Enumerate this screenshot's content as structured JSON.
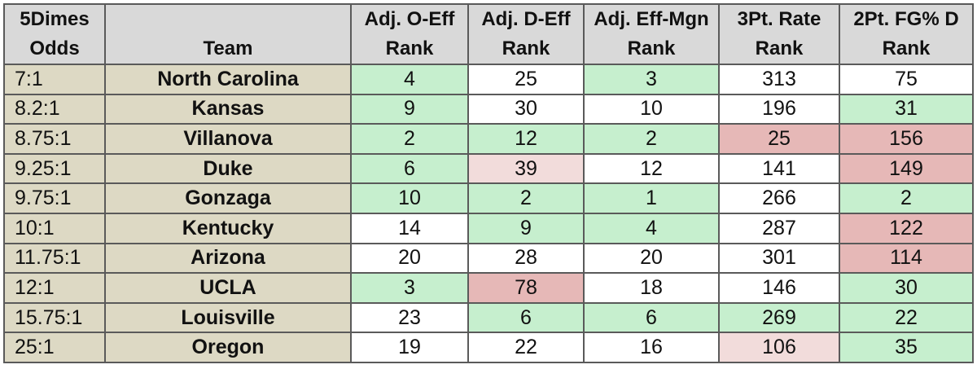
{
  "headers": {
    "odds": [
      "5Dimes",
      "Odds"
    ],
    "team": "Team",
    "adj_o": [
      "Adj. O-Eff",
      "Rank"
    ],
    "adj_d": [
      "Adj. D-Eff",
      "Rank"
    ],
    "adj_mgn": [
      "Adj. Eff-Mgn",
      "Rank"
    ],
    "three_pt": [
      "3Pt. Rate",
      "Rank"
    ],
    "two_pt_d": [
      "2Pt. FG% D",
      "Rank"
    ]
  },
  "colors": {
    "header_bg": "#d9d9d9",
    "team_bg": "#ddd9c4",
    "good": "#c6efce",
    "light_bad": "#f2dcdb",
    "bad": "#e6b8b7",
    "neutral": "#ffffff"
  },
  "rows": [
    {
      "odds": "7:1",
      "team": "North Carolina",
      "adj_o": "4",
      "adj_d": "25",
      "adj_mgn": "3",
      "three_pt": "313",
      "two_pt_d": "75"
    },
    {
      "odds": "8.2:1",
      "team": "Kansas",
      "adj_o": "9",
      "adj_d": "30",
      "adj_mgn": "10",
      "three_pt": "196",
      "two_pt_d": "31"
    },
    {
      "odds": "8.75:1",
      "team": "Villanova",
      "adj_o": "2",
      "adj_d": "12",
      "adj_mgn": "2",
      "three_pt": "25",
      "two_pt_d": "156"
    },
    {
      "odds": "9.25:1",
      "team": "Duke",
      "adj_o": "6",
      "adj_d": "39",
      "adj_mgn": "12",
      "three_pt": "141",
      "two_pt_d": "149"
    },
    {
      "odds": "9.75:1",
      "team": "Gonzaga",
      "adj_o": "10",
      "adj_d": "2",
      "adj_mgn": "1",
      "three_pt": "266",
      "two_pt_d": "2"
    },
    {
      "odds": "10:1",
      "team": "Kentucky",
      "adj_o": "14",
      "adj_d": "9",
      "adj_mgn": "4",
      "three_pt": "287",
      "two_pt_d": "122"
    },
    {
      "odds": "11.75:1",
      "team": "Arizona",
      "adj_o": "20",
      "adj_d": "28",
      "adj_mgn": "20",
      "three_pt": "301",
      "two_pt_d": "114"
    },
    {
      "odds": "12:1",
      "team": "UCLA",
      "adj_o": "3",
      "adj_d": "78",
      "adj_mgn": "18",
      "three_pt": "146",
      "two_pt_d": "30"
    },
    {
      "odds": "15.75:1",
      "team": "Louisville",
      "adj_o": "23",
      "adj_d": "6",
      "adj_mgn": "6",
      "three_pt": "269",
      "two_pt_d": "22"
    },
    {
      "odds": "25:1",
      "team": "Oregon",
      "adj_o": "19",
      "adj_d": "22",
      "adj_mgn": "16",
      "three_pt": "106",
      "two_pt_d": "35"
    }
  ]
}
